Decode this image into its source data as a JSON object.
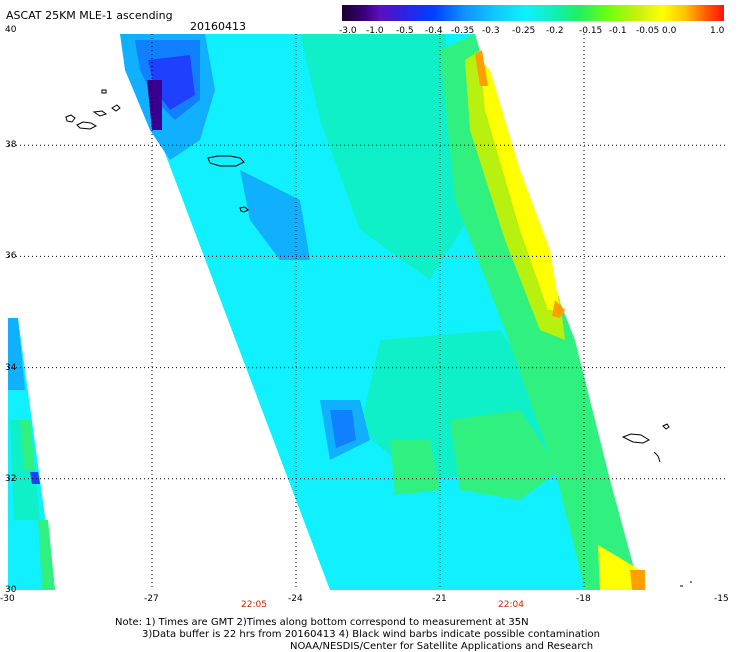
{
  "header": {
    "title": "ASCAT 25KM MLE-1 ascending",
    "date": "20160413"
  },
  "colorbar": {
    "labels": [
      "-3.0",
      "-1.0",
      "-0.5",
      "-0.4",
      "-0.35",
      "-0.3",
      "-0.25",
      "-0.2",
      "-0.15",
      "-0.1",
      "-0.05",
      "0.0",
      "1.0"
    ],
    "colors": [
      "#1a0030",
      "#4a0090",
      "#4000ff",
      "#1040ff",
      "#1090ff",
      "#10d0ff",
      "#10f0d0",
      "#10f070",
      "#50ff10",
      "#b0f010",
      "#ffff00",
      "#ffa000",
      "#ff2000"
    ]
  },
  "map": {
    "lat_labels": [
      "40",
      "38",
      "36",
      "34",
      "32",
      "30"
    ],
    "lon_labels": [
      "-30",
      "-27",
      "-24",
      "-21",
      "-18",
      "-15"
    ],
    "time_labels": [
      "22:05",
      "22:04"
    ]
  },
  "footer": {
    "note_line1": "Note: 1) Times are GMT 2)Times along bottom correspond to measurement at 35N",
    "note_line2": "3)Data buffer is 22 hrs from 20160413 4) Black wind barbs indicate possible contamination",
    "note_line3": "NOAA/NESDIS/Center for Satellite Applications and Research"
  }
}
